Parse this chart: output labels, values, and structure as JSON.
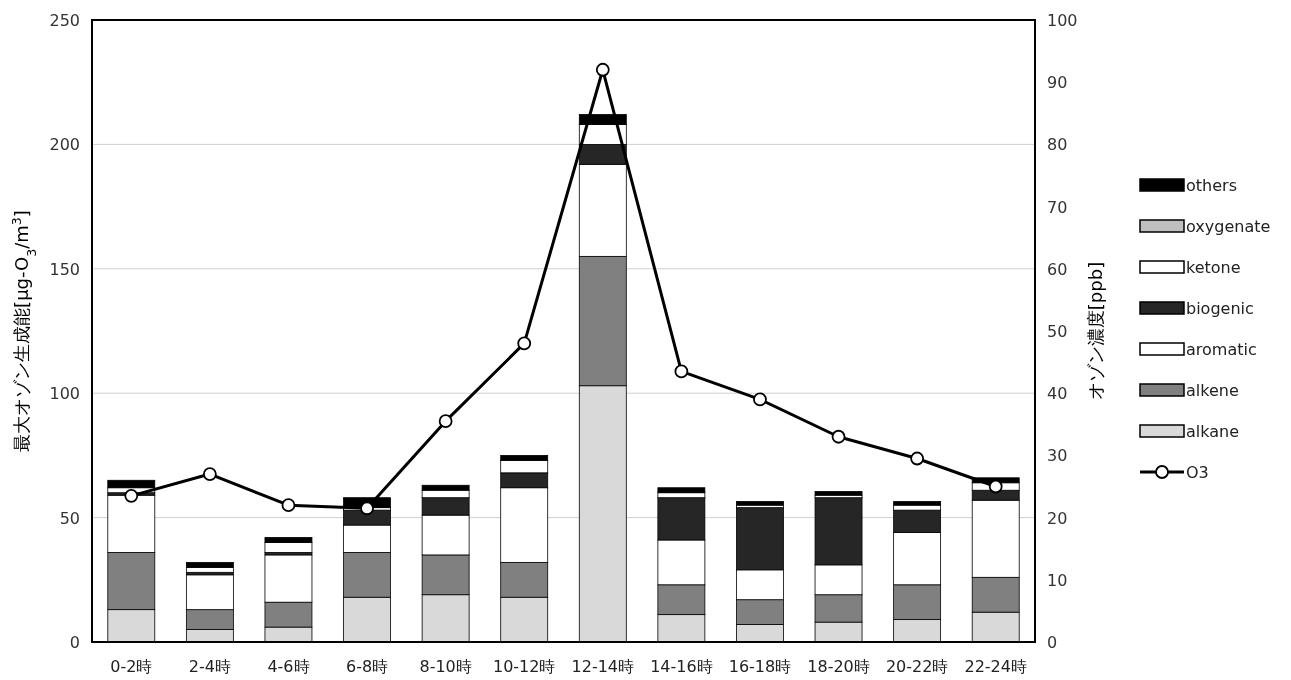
{
  "chart_data": {
    "type": "bar",
    "stacked": true,
    "grid": "y",
    "legend": "right",
    "marker": "circle",
    "ylabel": "最大オゾン生成能[μg-O$_{3}$/m$^{3}$]",
    "y2label": "オゾン濃度[ppb]",
    "categories": [
      "0-2時",
      "2-4時",
      "4-6時",
      "6-8時",
      "8-10時",
      "10-12時",
      "12-14時",
      "14-16時",
      "16-18時",
      "18-20時",
      "20-22時",
      "22-24時"
    ],
    "ylim": [
      0,
      250
    ],
    "yticks": [
      0,
      50,
      100,
      150,
      200,
      250
    ],
    "y2lim": [
      0,
      100
    ],
    "y2ticks": [
      0,
      10,
      20,
      30,
      40,
      50,
      60,
      70,
      80,
      90,
      100
    ],
    "series": [
      {
        "name": "alkane",
        "color": "#d9d9d9",
        "values": [
          13,
          5,
          6,
          18,
          19,
          18,
          103,
          11,
          7,
          8,
          9,
          12
        ]
      },
      {
        "name": "alkene",
        "color": "#808080",
        "values": [
          23,
          8,
          10,
          18,
          16,
          14,
          52,
          12,
          10,
          11,
          14,
          14
        ]
      },
      {
        "name": "aromatic",
        "color": "#ffffff",
        "values": [
          23,
          14,
          19,
          11,
          16,
          30,
          37,
          18,
          12,
          12,
          21,
          31
        ]
      },
      {
        "name": "biogenic",
        "color": "#262626",
        "values": [
          1,
          1,
          1,
          6,
          7,
          6,
          8,
          17,
          25,
          27,
          9,
          4
        ]
      },
      {
        "name": "ketone",
        "color": "#ffffff",
        "values": [
          2,
          2,
          4,
          1,
          3,
          5,
          8,
          2,
          1,
          1,
          2,
          3
        ]
      },
      {
        "name": "oxygenate",
        "color": "#bfbfbf",
        "values": [
          0,
          0,
          0,
          0,
          0,
          0,
          0,
          0,
          0,
          0,
          0,
          0
        ]
      },
      {
        "name": "others",
        "color": "#000000",
        "values": [
          3,
          2,
          2,
          4,
          2,
          2,
          4,
          2,
          1.5,
          1.5,
          1.5,
          2
        ]
      },
      {
        "name": "O3",
        "type": "line",
        "axis": "y2",
        "color": "#000000",
        "values": [
          23.5,
          27,
          22,
          21.5,
          35.5,
          48,
          92,
          43.5,
          39,
          33,
          29.5,
          25
        ]
      }
    ]
  }
}
